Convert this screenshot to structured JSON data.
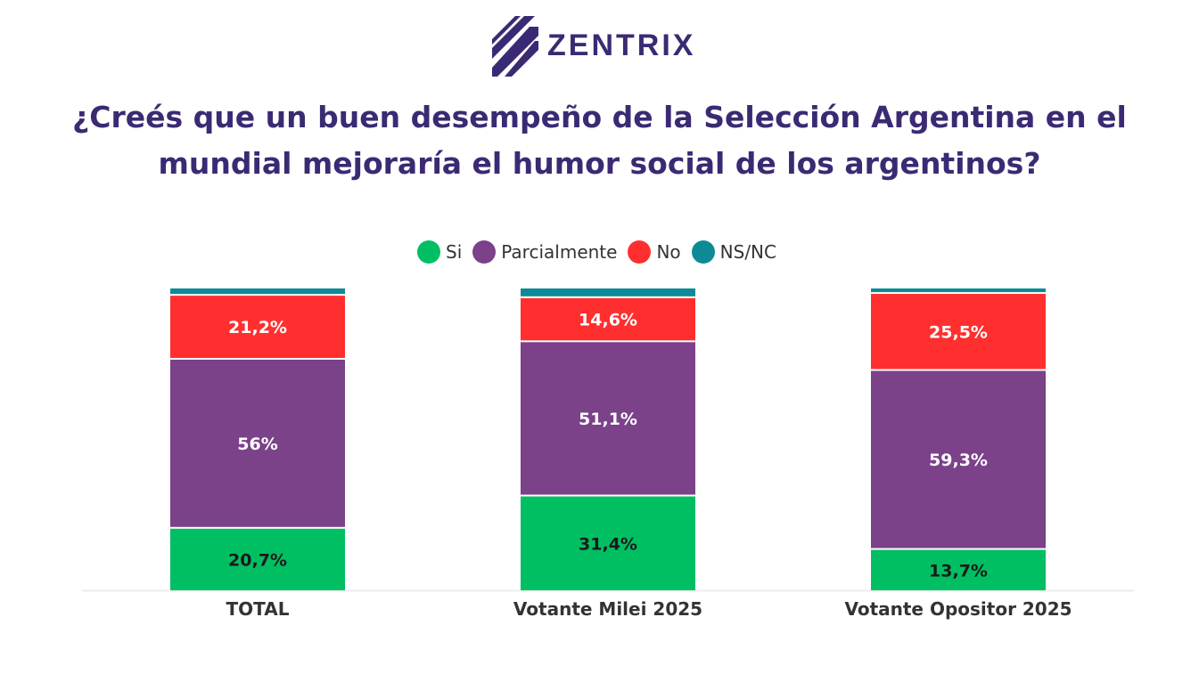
{
  "brand": {
    "name": "ZENTRIX",
    "color": "#3b2a73"
  },
  "title_line1": "¿Creés que un buen desempeño de la Selección Argentina en el",
  "title_line2": "mundial mejoraría el humor social de los argentinos?",
  "chart_data": {
    "type": "bar",
    "stacked": true,
    "categories": [
      "TOTAL",
      "Votante Milei 2025",
      "Votante Opositor 2025"
    ],
    "series": [
      {
        "name": "Si",
        "color": "#00bf63",
        "values": [
          20.7,
          31.4,
          13.7
        ],
        "labels": [
          "20,7%",
          "31,4%",
          "13,7%"
        ]
      },
      {
        "name": "Parcialmente",
        "color": "#7b4189",
        "values": [
          56,
          51.1,
          59.3
        ],
        "labels": [
          "56%",
          "51,1%",
          "59,3%"
        ]
      },
      {
        "name": "No",
        "color": "#ff2f2f",
        "values": [
          21.2,
          14.6,
          25.5
        ],
        "labels": [
          "21,2%",
          "14,6%",
          "25,5%"
        ]
      },
      {
        "name": "NS/NC",
        "color": "#0e8a96",
        "values": [
          2.1,
          2.9,
          1.5
        ],
        "labels": [
          "",
          "",
          ""
        ]
      }
    ],
    "ylim": [
      0,
      100
    ],
    "legend_position": "top-center",
    "grid": false
  }
}
